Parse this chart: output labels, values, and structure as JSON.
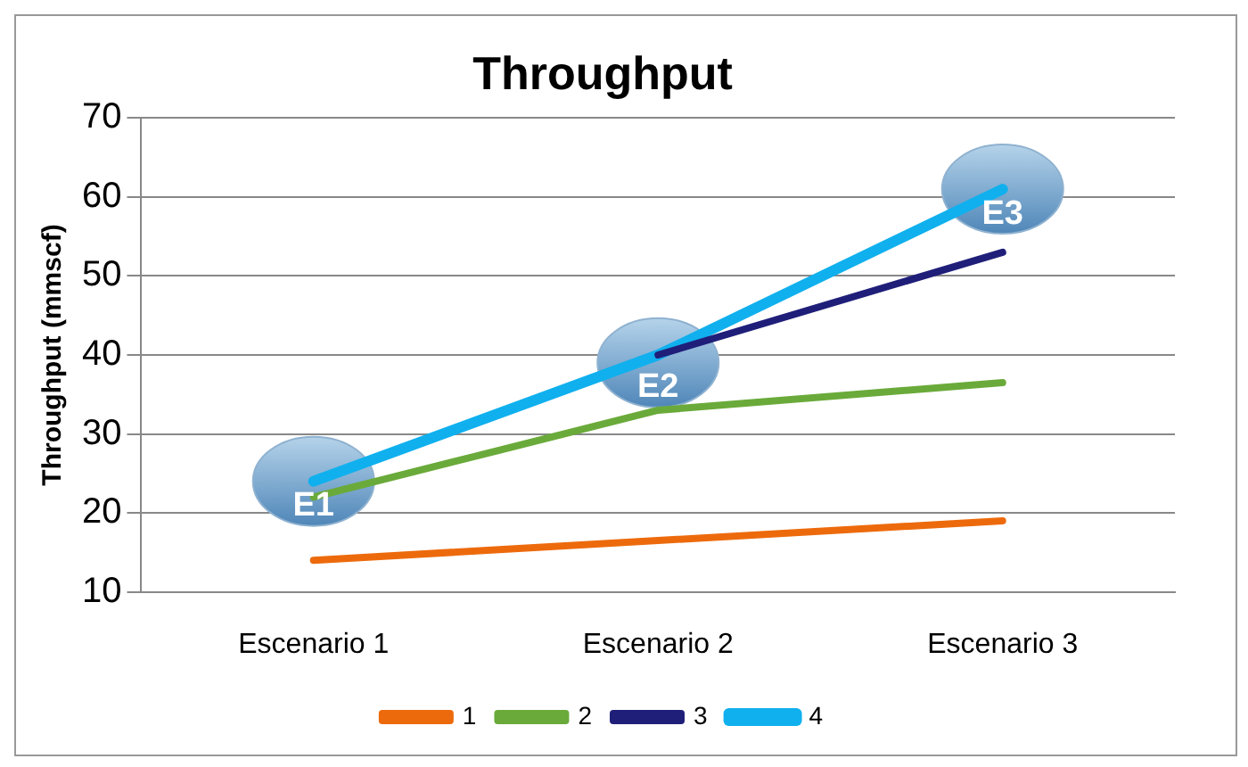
{
  "chart_data": {
    "type": "line",
    "title": "Throughput",
    "ylabel": "Throughput (mmscf)",
    "categories": [
      "Escenario 1",
      "Escenario 2",
      "Escenario 3"
    ],
    "series": [
      {
        "name": "1",
        "color": "#ed6a0c",
        "values": [
          14,
          16.5,
          19
        ]
      },
      {
        "name": "2",
        "color": "#6aaa3a",
        "values": [
          22,
          33,
          36.5
        ]
      },
      {
        "name": "3",
        "color": "#1f1f7a",
        "values": [
          null,
          40,
          53
        ]
      },
      {
        "name": "4",
        "color": "#10b0ee",
        "values": [
          24,
          40,
          61
        ]
      }
    ],
    "ylim": [
      10,
      70
    ],
    "yticks": [
      10,
      20,
      30,
      40,
      50,
      60,
      70
    ],
    "grid": "y",
    "legend": "bottom",
    "marker": "none",
    "line_style": "solid",
    "annotations": [
      {
        "text": "E1",
        "x": "Escenario 1",
        "y": 24
      },
      {
        "text": "E2",
        "x": "Escenario 2",
        "y": 39
      },
      {
        "text": "E3",
        "x": "Escenario 3",
        "y": 61
      }
    ]
  }
}
